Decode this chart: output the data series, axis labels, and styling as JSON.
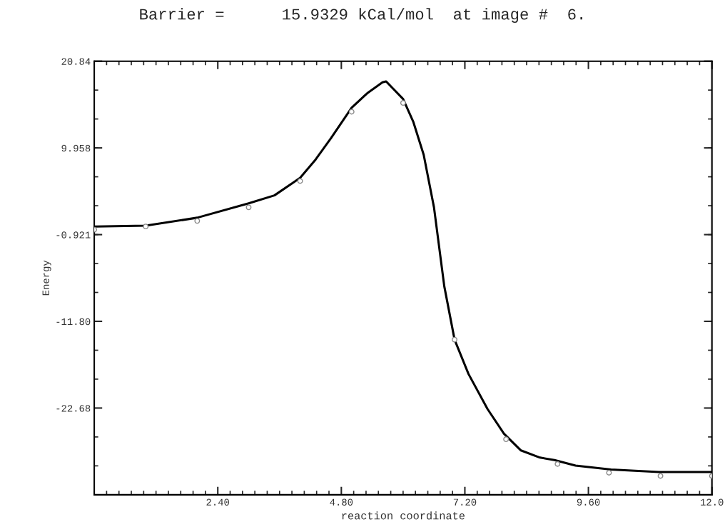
{
  "chart_data": {
    "type": "scatter",
    "title": "Barrier =      15.9329 kCal/mol  at image #  6.",
    "xlabel": "reaction coordinate",
    "ylabel": "Energy",
    "xlim": [
      0,
      12
    ],
    "ylim": [
      -33.56,
      20.84
    ],
    "xticks": [
      {
        "value": 2.4,
        "label": "2.40"
      },
      {
        "value": 4.8,
        "label": "4.80"
      },
      {
        "value": 7.2,
        "label": "7.20"
      },
      {
        "value": 9.6,
        "label": "9.60"
      },
      {
        "value": 12,
        "label": "12.0"
      }
    ],
    "yticks": [
      {
        "value": -22.68,
        "label": "-22.68"
      },
      {
        "value": -11.8,
        "label": "-11.80"
      },
      {
        "value": -0.921,
        "label": "-0.921"
      },
      {
        "value": 9.958,
        "label": "9.958"
      },
      {
        "value": 20.84,
        "label": "20.84"
      }
    ],
    "grid": false,
    "marker": "circle",
    "series": [
      {
        "type": "scatter",
        "color": "#8a8a8a",
        "x": [
          0,
          1,
          2,
          3,
          4,
          5,
          6,
          7,
          8,
          9,
          10,
          11,
          12
        ],
        "values": [
          -0.3,
          0.1,
          0.8,
          2.5,
          5.8,
          14.5,
          15.6,
          -14.1,
          -26.6,
          -29.7,
          -30.8,
          -31.2,
          -31.2
        ]
      },
      {
        "type": "line",
        "color": "#000000",
        "marker": "none",
        "line_style": "solid",
        "x": [
          0,
          1,
          2,
          3,
          3.5,
          4,
          4.3,
          4.6,
          5,
          5.3,
          5.6,
          5.67,
          6,
          6.2,
          6.4,
          6.6,
          6.8,
          7.0,
          7.27,
          7.64,
          7.96,
          8.29,
          8.66,
          8.94,
          9.35,
          10.04,
          10.97,
          11.99
        ],
        "values": [
          0.1,
          0.2,
          1.2,
          3.0,
          4.0,
          6.2,
          8.5,
          11.2,
          15.0,
          16.8,
          18.2,
          18.3,
          16.1,
          13.2,
          9.1,
          2.5,
          -7.4,
          -14.1,
          -18.4,
          -22.8,
          -25.9,
          -28.0,
          -28.9,
          -29.2,
          -29.9,
          -30.4,
          -30.7,
          -30.7
        ]
      }
    ]
  }
}
